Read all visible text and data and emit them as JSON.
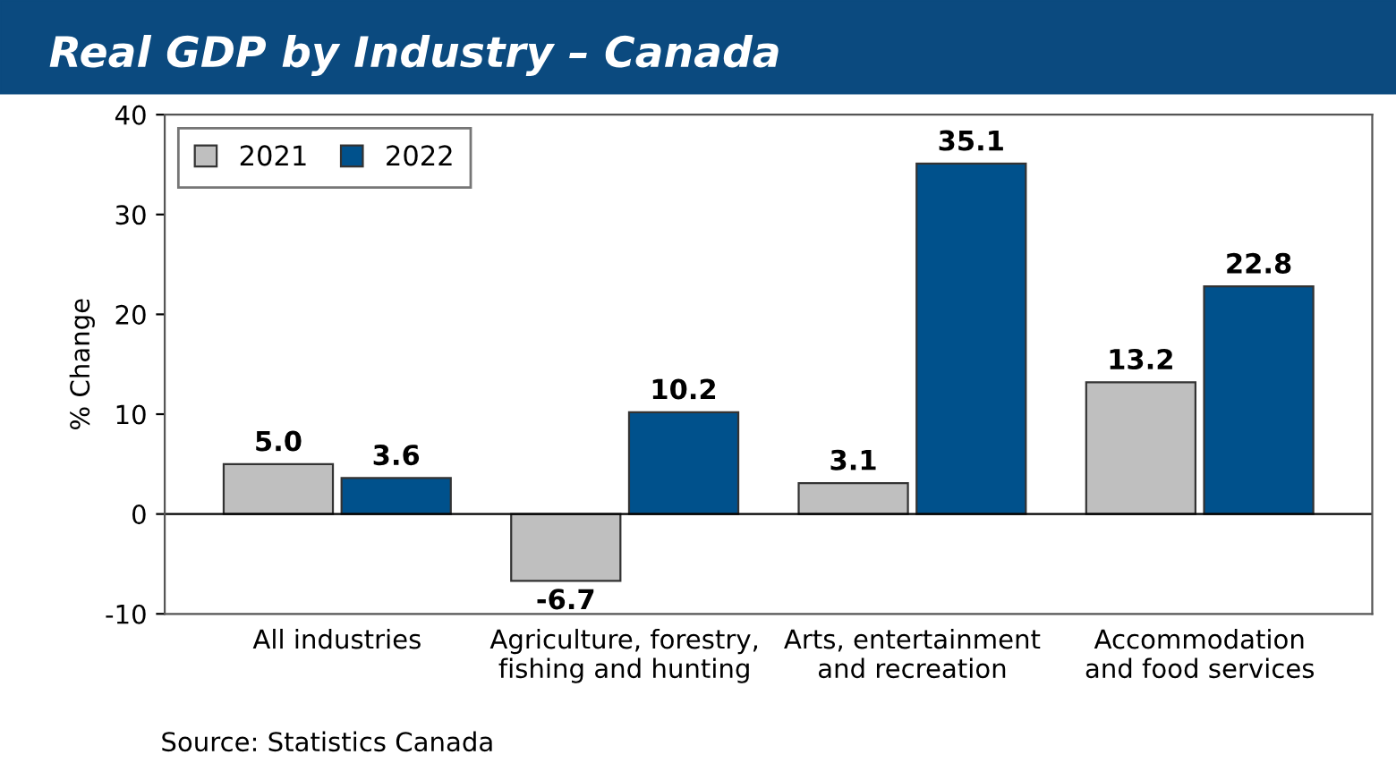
{
  "chart_data": {
    "type": "bar",
    "title": "Real GDP by Industry – Canada",
    "ylabel": "% Change",
    "categories": [
      "All industries",
      "Agriculture, forestry,\nfishing and hunting",
      "Arts, entertainment\nand recreation",
      "Accommodation\nand food services"
    ],
    "series": [
      {
        "name": "2021",
        "color": "#bfbfbf",
        "values": [
          5.0,
          -6.7,
          3.1,
          13.2
        ],
        "value_labels": [
          "5.0",
          "-6.7",
          "3.1",
          "13.2"
        ]
      },
      {
        "name": "2022",
        "color": "#00518c",
        "values": [
          3.6,
          10.2,
          35.1,
          22.8
        ],
        "value_labels": [
          "3.6",
          "10.2",
          "35.1",
          "22.8"
        ]
      }
    ],
    "ylim": [
      -10,
      40
    ],
    "yticks": [
      -10,
      0,
      10,
      20,
      30,
      40
    ],
    "grid": false,
    "ref_lines": [
      {
        "axis": "y",
        "value": 0,
        "color": "#000000"
      }
    ],
    "legend": "top left",
    "annotations": [
      "Source: Statistics Canada"
    ]
  }
}
